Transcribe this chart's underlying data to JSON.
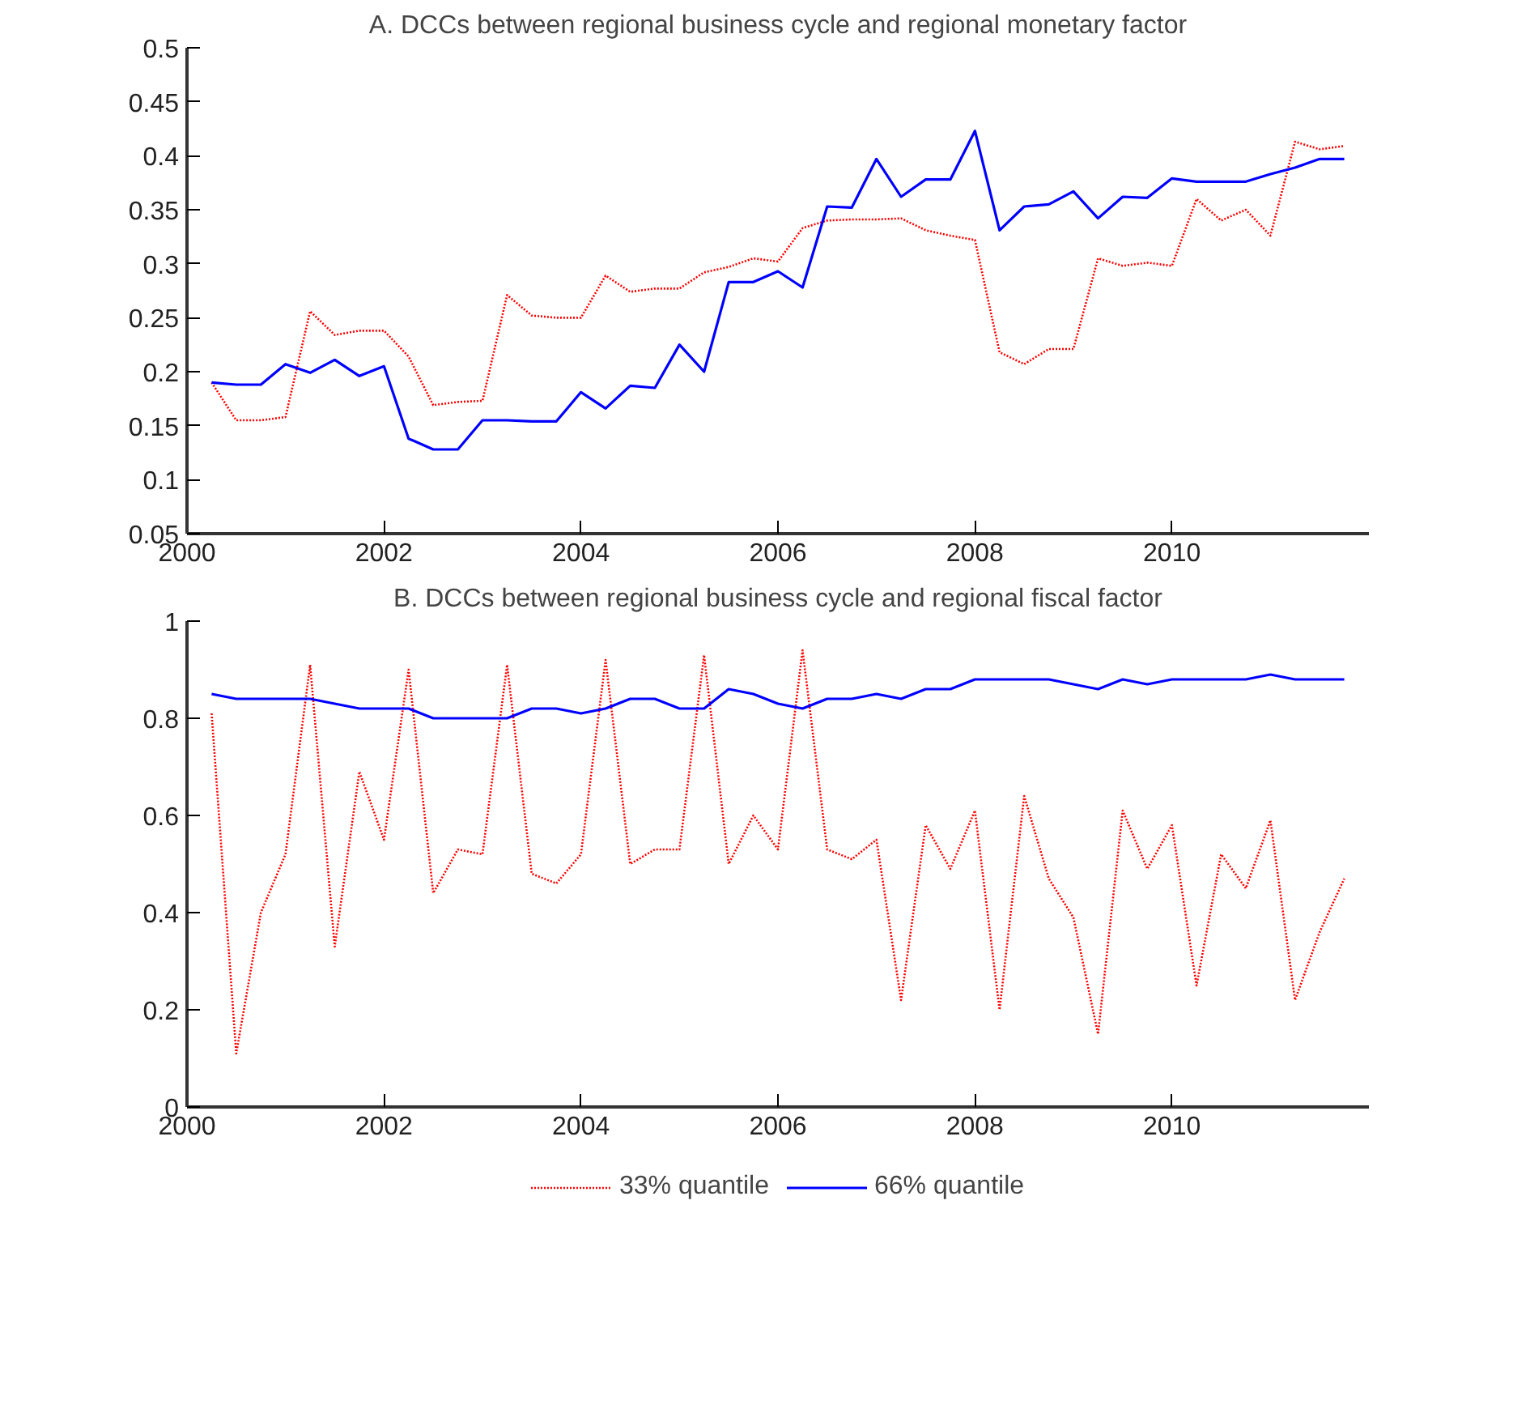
{
  "chart_data": [
    {
      "type": "line",
      "title": "A. DCCs between regional business cycle and regional monetary factor",
      "x": [
        2000.25,
        2000.5,
        2000.75,
        2001,
        2001.25,
        2001.5,
        2001.75,
        2002,
        2002.25,
        2002.5,
        2002.75,
        2003,
        2003.25,
        2003.5,
        2003.75,
        2004,
        2004.25,
        2004.5,
        2004.75,
        2005,
        2005.25,
        2005.5,
        2005.75,
        2006,
        2006.25,
        2006.5,
        2006.75,
        2007,
        2007.25,
        2007.5,
        2007.75,
        2008,
        2008.25,
        2008.5,
        2008.75,
        2009,
        2009.25,
        2009.5,
        2009.75,
        2010,
        2010.25,
        2010.5,
        2010.75,
        2011,
        2011.25,
        2011.5,
        2011.75
      ],
      "series": [
        {
          "color": "#ff0000",
          "line_style": "dotted",
          "values": [
            0.19,
            0.155,
            0.155,
            0.158,
            0.256,
            0.234,
            0.238,
            0.238,
            0.214,
            0.169,
            0.172,
            0.173,
            0.271,
            0.252,
            0.25,
            0.25,
            0.289,
            0.274,
            0.277,
            0.277,
            0.292,
            0.297,
            0.305,
            0.302,
            0.333,
            0.34,
            0.341,
            0.341,
            0.342,
            0.331,
            0.326,
            0.322,
            0.218,
            0.207,
            0.221,
            0.221,
            0.305,
            0.298,
            0.301,
            0.298,
            0.36,
            0.34,
            0.35,
            0.326,
            0.413,
            0.406,
            0.409
          ]
        },
        {
          "color": "#0000ff",
          "line_style": "solid",
          "values": [
            0.19,
            0.188,
            0.188,
            0.207,
            0.199,
            0.211,
            0.196,
            0.205,
            0.138,
            0.128,
            0.128,
            0.155,
            0.155,
            0.154,
            0.154,
            0.181,
            0.166,
            0.187,
            0.185,
            0.225,
            0.2,
            0.283,
            0.283,
            0.293,
            0.278,
            0.353,
            0.352,
            0.397,
            0.362,
            0.378,
            0.378,
            0.423,
            0.331,
            0.353,
            0.355,
            0.367,
            0.342,
            0.362,
            0.361,
            0.379,
            0.376,
            0.376,
            0.376,
            0.383,
            0.389,
            0.397,
            0.397
          ]
        }
      ],
      "xlim": [
        2000,
        2012
      ],
      "xticks": [
        2000,
        2002,
        2004,
        2006,
        2008,
        2010
      ],
      "ylim": [
        0.05,
        0.5
      ],
      "yticks": [
        0.05,
        0.1,
        0.15,
        0.2,
        0.25,
        0.3,
        0.35,
        0.4,
        0.45,
        0.5
      ],
      "grid": false
    },
    {
      "type": "line",
      "title": "B. DCCs between regional business cycle and regional fiscal factor",
      "x": [
        2000.25,
        2000.5,
        2000.75,
        2001,
        2001.25,
        2001.5,
        2001.75,
        2002,
        2002.25,
        2002.5,
        2002.75,
        2003,
        2003.25,
        2003.5,
        2003.75,
        2004,
        2004.25,
        2004.5,
        2004.75,
        2005,
        2005.25,
        2005.5,
        2005.75,
        2006,
        2006.25,
        2006.5,
        2006.75,
        2007,
        2007.25,
        2007.5,
        2007.75,
        2008,
        2008.25,
        2008.5,
        2008.75,
        2009,
        2009.25,
        2009.5,
        2009.75,
        2010,
        2010.25,
        2010.5,
        2010.75,
        2011,
        2011.25,
        2011.5,
        2011.75
      ],
      "series": [
        {
          "name": "33% quantile",
          "color": "#ff0000",
          "line_style": "dotted",
          "values": [
            0.81,
            0.11,
            0.4,
            0.52,
            0.91,
            0.33,
            0.69,
            0.55,
            0.9,
            0.44,
            0.53,
            0.52,
            0.91,
            0.48,
            0.46,
            0.52,
            0.92,
            0.5,
            0.53,
            0.53,
            0.93,
            0.5,
            0.6,
            0.53,
            0.94,
            0.53,
            0.51,
            0.55,
            0.22,
            0.58,
            0.49,
            0.61,
            0.2,
            0.64,
            0.47,
            0.39,
            0.15,
            0.61,
            0.49,
            0.58,
            0.25,
            0.52,
            0.45,
            0.59,
            0.22,
            0.36,
            0.47
          ]
        },
        {
          "name": "66% quantile",
          "color": "#0000ff",
          "line_style": "solid",
          "values": [
            0.85,
            0.84,
            0.84,
            0.84,
            0.84,
            0.83,
            0.82,
            0.82,
            0.82,
            0.8,
            0.8,
            0.8,
            0.8,
            0.82,
            0.82,
            0.81,
            0.82,
            0.84,
            0.84,
            0.82,
            0.82,
            0.86,
            0.85,
            0.83,
            0.82,
            0.84,
            0.84,
            0.85,
            0.84,
            0.86,
            0.86,
            0.88,
            0.88,
            0.88,
            0.88,
            0.87,
            0.86,
            0.88,
            0.87,
            0.88,
            0.88,
            0.88,
            0.88,
            0.89,
            0.88,
            0.88,
            0.88
          ]
        }
      ],
      "xlim": [
        2000,
        2012
      ],
      "xticks": [
        2000,
        2002,
        2004,
        2006,
        2008,
        2010
      ],
      "ylim": [
        0,
        1
      ],
      "yticks": [
        0,
        0.2,
        0.4,
        0.6,
        0.8,
        1
      ],
      "grid": false,
      "legend": "bottom"
    }
  ]
}
